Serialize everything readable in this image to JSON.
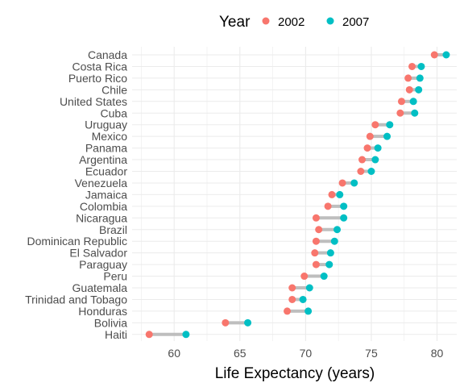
{
  "chart_data": {
    "type": "dumbbell",
    "title": "",
    "xlabel": "Life Expectancy (years)",
    "ylabel": "",
    "xlim": [
      56.8,
      81.5
    ],
    "xticks": [
      60,
      65,
      70,
      75,
      80
    ],
    "grid": true,
    "legend": {
      "title": "Year",
      "position": "top"
    },
    "categories": [
      "Canada",
      "Costa Rica",
      "Puerto Rico",
      "Chile",
      "United States",
      "Cuba",
      "Uruguay",
      "Mexico",
      "Panama",
      "Argentina",
      "Ecuador",
      "Venezuela",
      "Jamaica",
      "Colombia",
      "Nicaragua",
      "Brazil",
      "Dominican Republic",
      "El Salvador",
      "Paraguay",
      "Peru",
      "Guatemala",
      "Trinidad and Tobago",
      "Honduras",
      "Bolivia",
      "Haiti"
    ],
    "series": [
      {
        "name": "2002",
        "color": "#F8766D",
        "values": [
          79.8,
          78.1,
          77.8,
          77.9,
          77.3,
          77.2,
          75.3,
          74.9,
          74.7,
          74.3,
          74.2,
          72.8,
          72.0,
          71.7,
          70.8,
          71.0,
          70.8,
          70.7,
          70.8,
          69.9,
          68.98,
          68.98,
          68.6,
          63.9,
          58.1
        ]
      },
      {
        "name": "2007",
        "color": "#00BFC4",
        "values": [
          80.7,
          78.8,
          78.7,
          78.6,
          78.2,
          78.3,
          76.4,
          76.2,
          75.5,
          75.3,
          75.0,
          73.7,
          72.6,
          72.9,
          72.9,
          72.4,
          72.2,
          71.9,
          71.8,
          71.4,
          70.3,
          69.8,
          70.2,
          65.6,
          60.9
        ]
      }
    ],
    "connector_color": "#bebebe"
  }
}
